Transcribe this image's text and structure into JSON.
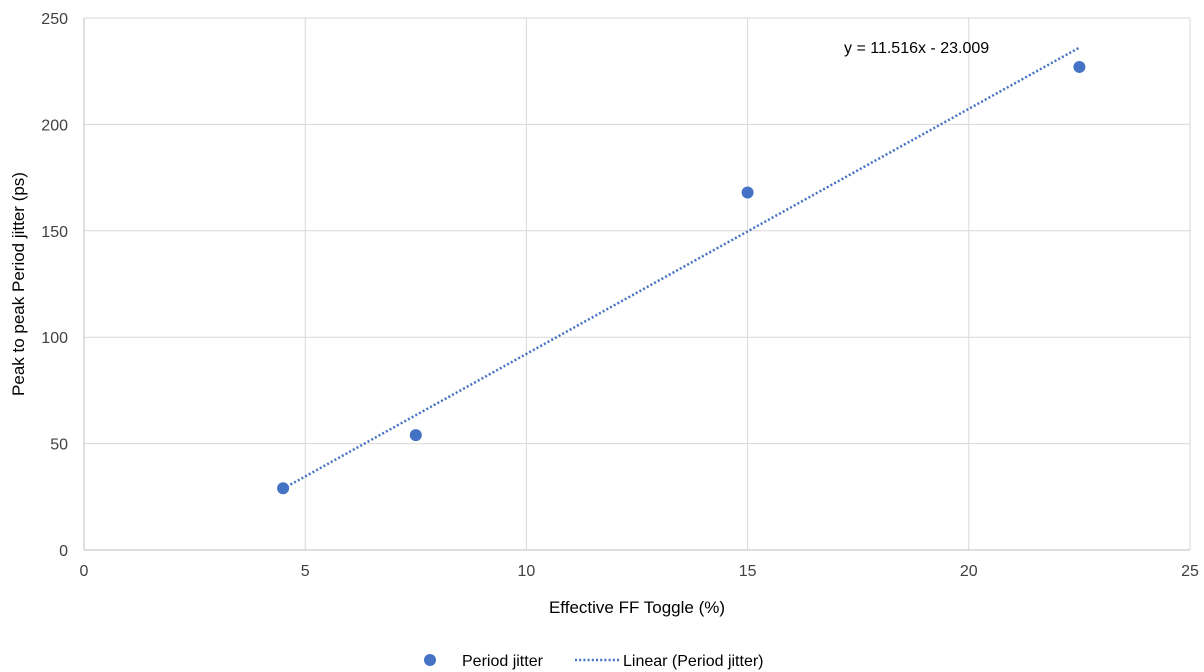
{
  "chart_data": {
    "type": "scatter",
    "title": "",
    "xlabel": "Effective FF Toggle (%)",
    "ylabel": "Peak to peak Period jitter  (ps)",
    "xlim": [
      0,
      25
    ],
    "ylim": [
      0,
      250
    ],
    "xticks": [
      0,
      5,
      10,
      15,
      20,
      25
    ],
    "yticks": [
      0,
      50,
      100,
      150,
      200,
      250
    ],
    "grid": true,
    "legend_position": "bottom",
    "series": [
      {
        "name": "Period jitter",
        "color": "#4472C4",
        "x": [
          4.5,
          7.5,
          15,
          22.5
        ],
        "y": [
          29,
          54,
          168,
          227
        ]
      }
    ],
    "trendline": {
      "name": "Linear (Period jitter)",
      "slope": 11.516,
      "intercept": -23.009,
      "x_range": [
        4.5,
        22.5
      ],
      "color": "#4472C4",
      "style": "dotted"
    },
    "annotations": [
      {
        "text": "y = 11.516x - 23.009"
      }
    ]
  }
}
